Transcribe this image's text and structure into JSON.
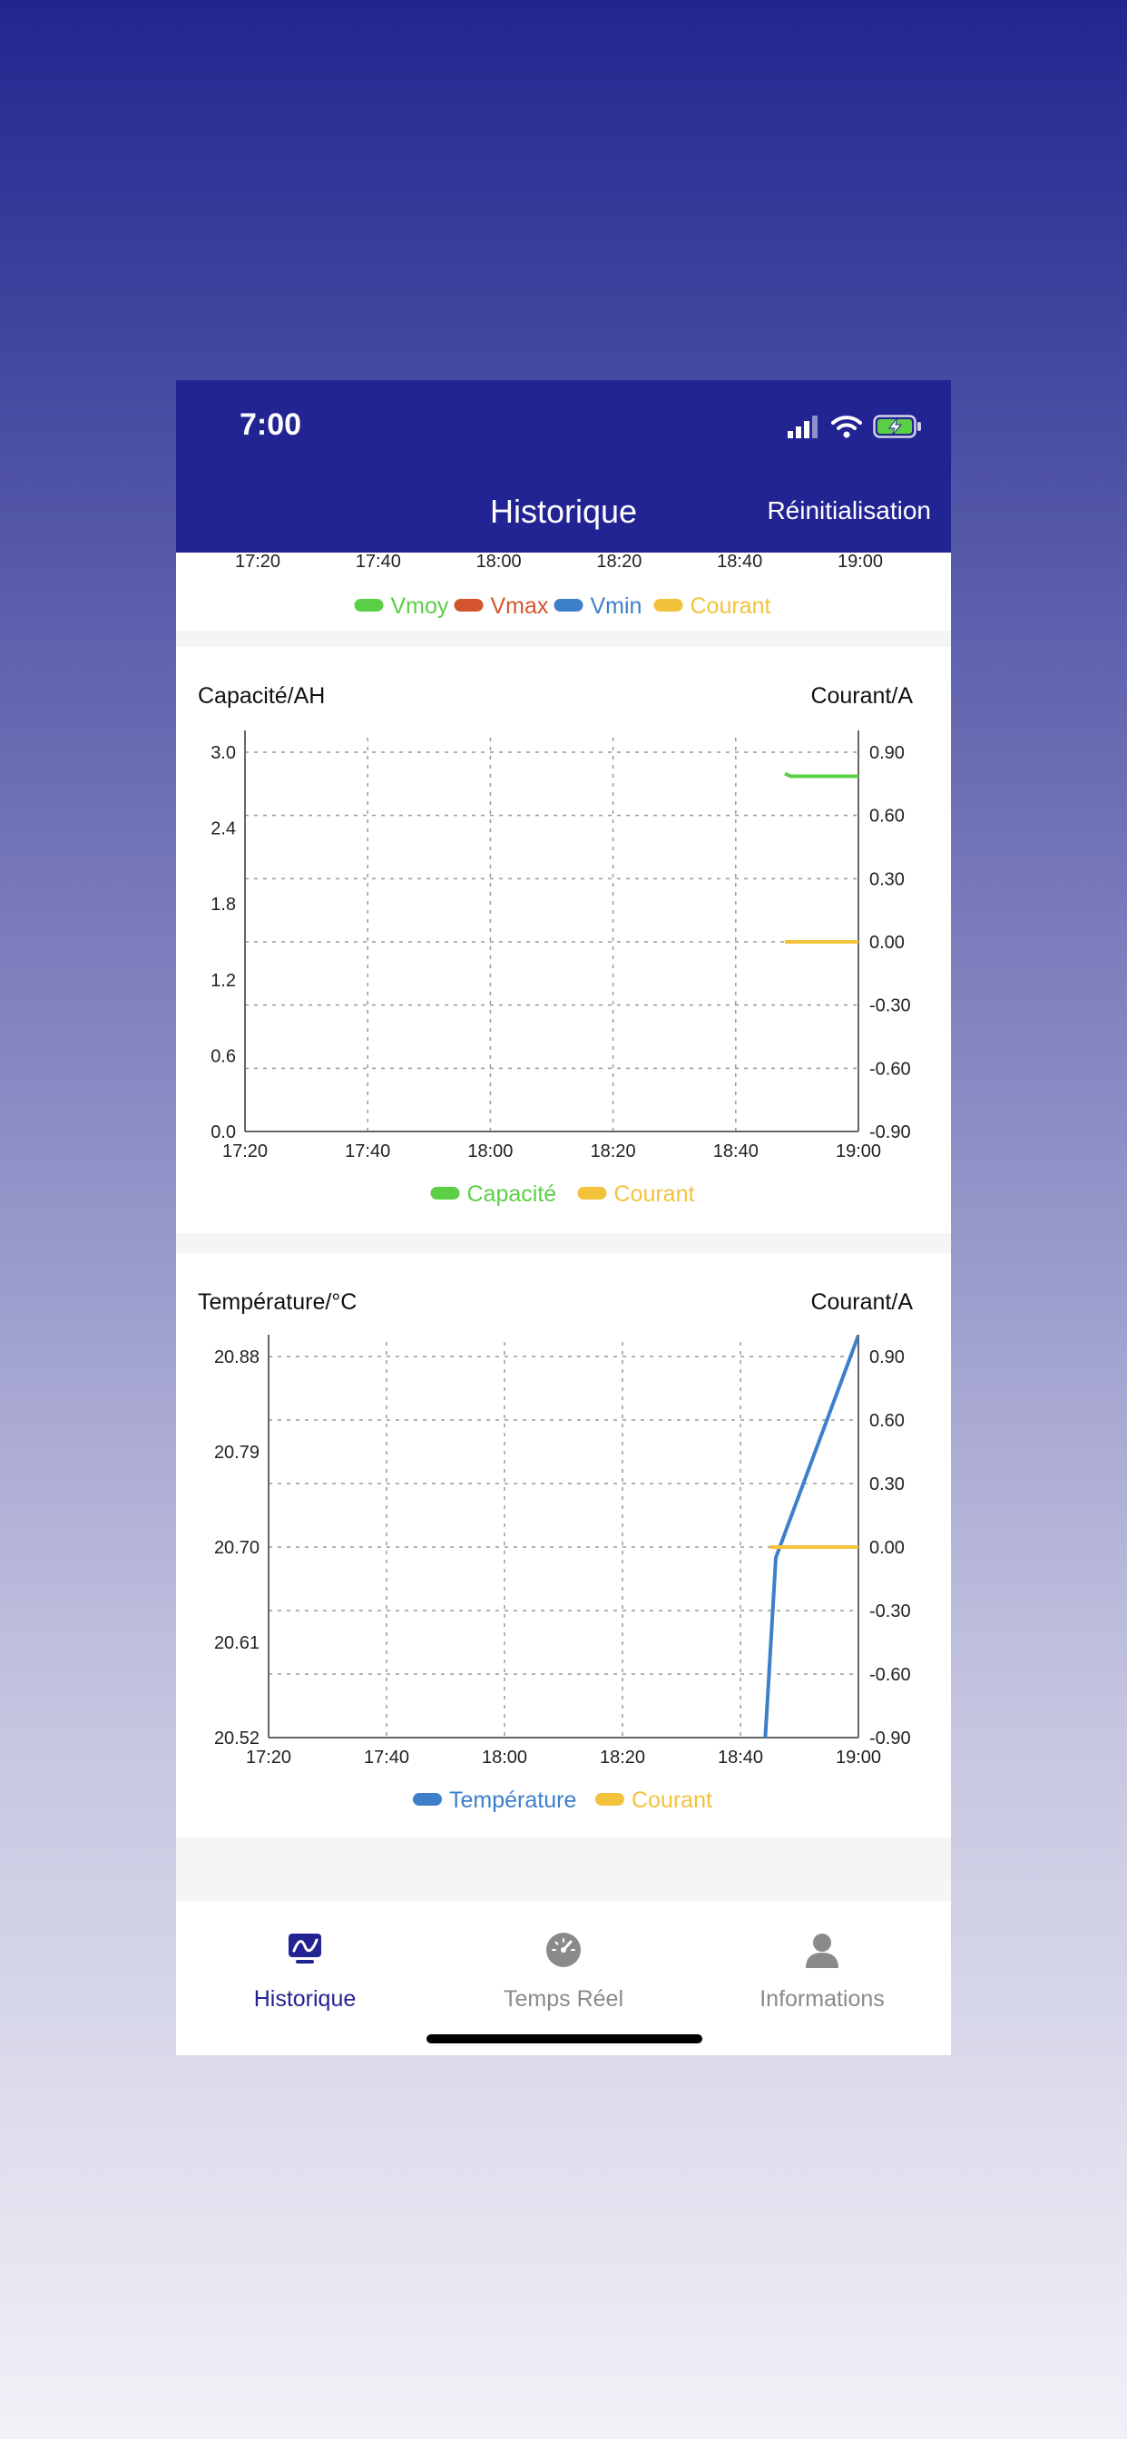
{
  "status_bar": {
    "time": "7:00"
  },
  "header": {
    "title": "Historique",
    "reset_label": "Réinitialisation"
  },
  "partial_chart": {
    "x_ticks": [
      "17:20",
      "17:40",
      "18:00",
      "18:20",
      "18:40",
      "19:00"
    ],
    "legend": [
      {
        "label": "Vmoy",
        "color": "#5bcf45"
      },
      {
        "label": "Vmax",
        "color": "#d4542d"
      },
      {
        "label": "Vmin",
        "color": "#3d7fc8"
      },
      {
        "label": "Courant",
        "color": "#f3c23b"
      }
    ]
  },
  "chart_data": [
    {
      "type": "line",
      "ylabel_left": "Capacité/AH",
      "ylabel_right": "Courant/A",
      "x_ticks": [
        "17:20",
        "17:40",
        "18:00",
        "18:20",
        "18:40",
        "19:00"
      ],
      "xlim": [
        "17:20",
        "19:00"
      ],
      "y_left_ticks": [
        "3.0",
        "2.4",
        "1.8",
        "1.2",
        "0.6",
        "0.0"
      ],
      "y_left_lim": [
        0,
        3.0
      ],
      "y_right_ticks": [
        "0.90",
        "0.60",
        "0.30",
        "0.00",
        "-0.30",
        "-0.60",
        "-0.90"
      ],
      "y_right_lim": [
        -0.9,
        0.9
      ],
      "grid": true,
      "series": [
        {
          "name": "Capacité",
          "axis": "left",
          "color": "#5bcf45",
          "x": [
            "18:48",
            "18:49",
            "19:00"
          ],
          "y": [
            2.83,
            2.81,
            2.81
          ]
        },
        {
          "name": "Courant",
          "axis": "right",
          "color": "#f3c23b",
          "x": [
            "18:48",
            "19:00"
          ],
          "y": [
            0.0,
            0.0
          ]
        }
      ],
      "legend": [
        {
          "label": "Capacité",
          "color": "#5bcf45"
        },
        {
          "label": "Courant",
          "color": "#f3c23b"
        }
      ]
    },
    {
      "type": "line",
      "ylabel_left": "Température/°C",
      "ylabel_right": "Courant/A",
      "x_ticks": [
        "17:20",
        "17:40",
        "18:00",
        "18:20",
        "18:40",
        "19:00"
      ],
      "xlim": [
        "17:20",
        "19:00"
      ],
      "y_left_ticks": [
        "20.88",
        "20.79",
        "20.70",
        "20.61",
        "20.52"
      ],
      "y_left_lim": [
        20.52,
        20.88
      ],
      "y_right_ticks": [
        "0.90",
        "0.60",
        "0.30",
        "0.00",
        "-0.30",
        "-0.60",
        "-0.90"
      ],
      "y_right_lim": [
        -0.9,
        0.9
      ],
      "grid": true,
      "series": [
        {
          "name": "Température",
          "axis": "left",
          "color": "#3d7fc8",
          "x": [
            "18:44",
            "18:46",
            "19:00"
          ],
          "y": [
            20.5,
            20.69,
            20.9
          ]
        },
        {
          "name": "Courant",
          "axis": "right",
          "color": "#f3c23b",
          "x": [
            "18:45",
            "19:00"
          ],
          "y": [
            0.0,
            0.0
          ]
        }
      ],
      "legend": [
        {
          "label": "Température",
          "color": "#3d7fc8"
        },
        {
          "label": "Courant",
          "color": "#f3c23b"
        }
      ]
    }
  ],
  "tabbar": {
    "items": [
      {
        "label": "Historique",
        "icon": "chart-icon",
        "active": true
      },
      {
        "label": "Temps Réel",
        "icon": "gauge-icon",
        "active": false
      },
      {
        "label": "Informations",
        "icon": "person-icon",
        "active": false
      }
    ]
  },
  "colors": {
    "brand": "#232493",
    "active_tab": "#232493",
    "inactive_tab": "#8a8a8a"
  }
}
